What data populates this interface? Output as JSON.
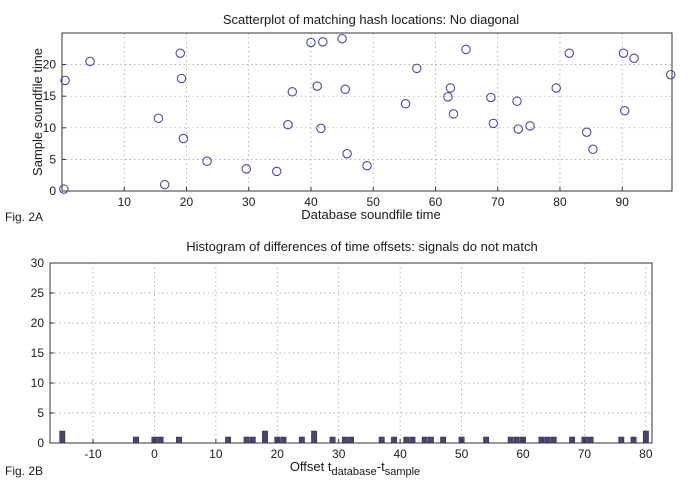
{
  "chart_data": [
    {
      "type": "scatter",
      "title": "Scatterplot of matching hash locations:  No diagonal",
      "xlabel": "Database soundfile time",
      "ylabel": "Sample soundfile time",
      "figure_label": "Fig. 2A",
      "xlim": [
        0,
        98
      ],
      "ylim": [
        0,
        25
      ],
      "xticks": [
        10,
        20,
        30,
        40,
        50,
        60,
        70,
        80,
        90
      ],
      "yticks": [
        0,
        5,
        10,
        15,
        20
      ],
      "grid": true,
      "marker": "open-circle",
      "color": "#4a4aa0",
      "points": [
        {
          "x": 0.3,
          "y": 0.3
        },
        {
          "x": 0.5,
          "y": 17.5
        },
        {
          "x": 4.5,
          "y": 20.5
        },
        {
          "x": 15.5,
          "y": 11.5
        },
        {
          "x": 16.5,
          "y": 1.0
        },
        {
          "x": 19.0,
          "y": 21.8
        },
        {
          "x": 19.2,
          "y": 17.8
        },
        {
          "x": 19.5,
          "y": 8.3
        },
        {
          "x": 23.3,
          "y": 4.7
        },
        {
          "x": 29.6,
          "y": 3.5
        },
        {
          "x": 34.5,
          "y": 3.1
        },
        {
          "x": 36.3,
          "y": 10.5
        },
        {
          "x": 37.0,
          "y": 15.7
        },
        {
          "x": 40.0,
          "y": 23.5
        },
        {
          "x": 41.0,
          "y": 16.6
        },
        {
          "x": 41.6,
          "y": 9.9
        },
        {
          "x": 41.9,
          "y": 23.6
        },
        {
          "x": 45.0,
          "y": 24.1
        },
        {
          "x": 45.5,
          "y": 16.1
        },
        {
          "x": 45.8,
          "y": 5.9
        },
        {
          "x": 49.0,
          "y": 4.0
        },
        {
          "x": 55.2,
          "y": 13.8
        },
        {
          "x": 57.0,
          "y": 19.4
        },
        {
          "x": 62.0,
          "y": 14.9
        },
        {
          "x": 62.4,
          "y": 16.3
        },
        {
          "x": 62.9,
          "y": 12.2
        },
        {
          "x": 64.9,
          "y": 22.4
        },
        {
          "x": 68.9,
          "y": 14.8
        },
        {
          "x": 69.3,
          "y": 10.7
        },
        {
          "x": 73.1,
          "y": 14.2
        },
        {
          "x": 73.3,
          "y": 9.8
        },
        {
          "x": 75.2,
          "y": 10.3
        },
        {
          "x": 79.4,
          "y": 16.3
        },
        {
          "x": 81.5,
          "y": 21.8
        },
        {
          "x": 84.3,
          "y": 9.3
        },
        {
          "x": 85.3,
          "y": 6.6
        },
        {
          "x": 90.2,
          "y": 21.8
        },
        {
          "x": 90.4,
          "y": 12.7
        },
        {
          "x": 91.9,
          "y": 21.0
        },
        {
          "x": 97.8,
          "y": 18.4
        }
      ]
    },
    {
      "type": "bar",
      "title": "Histogram of differences of time offsets: signals do not match",
      "xlabel": "Offset t",
      "xlabel_sub1": "database",
      "xlabel_mid": "-t",
      "xlabel_sub2": "sample",
      "ylabel": "",
      "figure_label": "Fig. 2B",
      "xlim": [
        -17,
        81
      ],
      "ylim": [
        0,
        30
      ],
      "xticks": [
        -10,
        0,
        10,
        20,
        30,
        40,
        50,
        60,
        70,
        80
      ],
      "yticks": [
        0,
        5,
        10,
        15,
        20,
        25,
        30
      ],
      "grid": true,
      "bar_width": 1,
      "color": "#46466e",
      "bars": [
        {
          "x": -15,
          "value": 2
        },
        {
          "x": -3,
          "value": 1
        },
        {
          "x": 0,
          "value": 1
        },
        {
          "x": 1,
          "value": 1
        },
        {
          "x": 4,
          "value": 1
        },
        {
          "x": 12,
          "value": 1
        },
        {
          "x": 15,
          "value": 1
        },
        {
          "x": 16,
          "value": 1
        },
        {
          "x": 18,
          "value": 2
        },
        {
          "x": 20,
          "value": 1
        },
        {
          "x": 21,
          "value": 1
        },
        {
          "x": 24,
          "value": 1
        },
        {
          "x": 26,
          "value": 2
        },
        {
          "x": 29,
          "value": 1
        },
        {
          "x": 31,
          "value": 1
        },
        {
          "x": 32,
          "value": 1
        },
        {
          "x": 37,
          "value": 1
        },
        {
          "x": 39,
          "value": 1
        },
        {
          "x": 41,
          "value": 1
        },
        {
          "x": 42,
          "value": 1
        },
        {
          "x": 44,
          "value": 1
        },
        {
          "x": 45,
          "value": 1
        },
        {
          "x": 47,
          "value": 1
        },
        {
          "x": 50,
          "value": 1
        },
        {
          "x": 54,
          "value": 1
        },
        {
          "x": 58,
          "value": 1
        },
        {
          "x": 59,
          "value": 1
        },
        {
          "x": 60,
          "value": 1
        },
        {
          "x": 63,
          "value": 1
        },
        {
          "x": 64,
          "value": 1
        },
        {
          "x": 65,
          "value": 1
        },
        {
          "x": 68,
          "value": 1
        },
        {
          "x": 70,
          "value": 1
        },
        {
          "x": 71,
          "value": 1
        },
        {
          "x": 76,
          "value": 1
        },
        {
          "x": 78,
          "value": 1
        },
        {
          "x": 80,
          "value": 2
        }
      ]
    }
  ]
}
